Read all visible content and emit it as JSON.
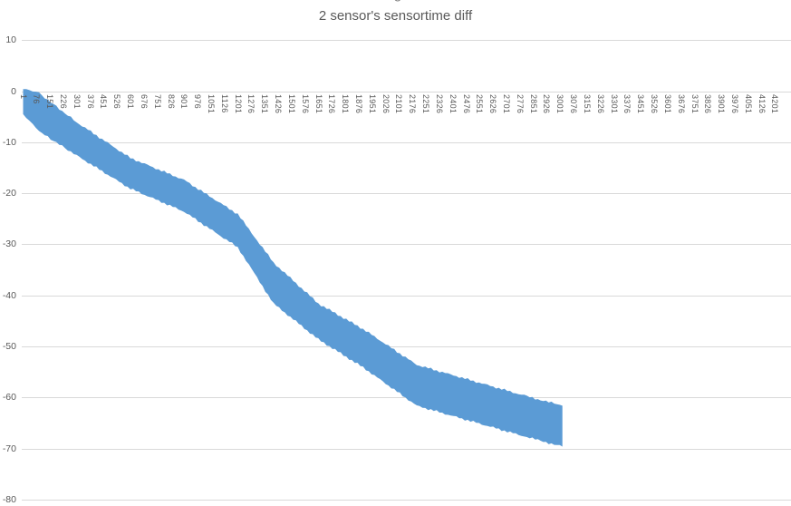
{
  "title": "2 sensor's sensortime diff",
  "cropped_text_above_title": "g",
  "colors": {
    "band": "#5b9bd5",
    "gridline": "#d9d9d9",
    "axis_label": "#595959",
    "title": "#595959",
    "background": "#ffffff"
  },
  "chart_data": {
    "type": "area",
    "title": "2 sensor's sensortime diff",
    "series_style": "dense-oscillating-line-rendered-as-thick-band",
    "legend": "none",
    "grid": "horizontal",
    "xlabel": "",
    "ylabel": "",
    "ylim": [
      -80,
      10
    ],
    "y_ticks": [
      10,
      0,
      -10,
      -20,
      -30,
      -40,
      -50,
      -60,
      -70,
      -80
    ],
    "x_tick_step": 75,
    "x_tick_labels": [
      "1",
      "76",
      "151",
      "226",
      "301",
      "376",
      "451",
      "526",
      "601",
      "676",
      "751",
      "826",
      "901",
      "976",
      "1051",
      "1126",
      "1201",
      "1276",
      "1351",
      "1426",
      "1501",
      "1576",
      "1651",
      "1726",
      "1801",
      "1876",
      "1951",
      "2026",
      "2101",
      "2176",
      "2251",
      "2326",
      "2401",
      "2476",
      "2551",
      "2626",
      "2701",
      "2776",
      "2851",
      "2926",
      "3001",
      "3076",
      "3151",
      "3226",
      "3301",
      "3376",
      "3451",
      "3526",
      "3601",
      "3676",
      "3751",
      "3826",
      "3901",
      "3976",
      "4051",
      "4126",
      "4201"
    ],
    "data_end_category": 3013,
    "band_points": [
      {
        "x": 1,
        "top": 0.5,
        "bottom": -4.5
      },
      {
        "x": 90,
        "top": -0.3,
        "bottom": -7.8
      },
      {
        "x": 300,
        "top": -6.0,
        "bottom": -12.5
      },
      {
        "x": 600,
        "top": -13.0,
        "bottom": -19.0
      },
      {
        "x": 900,
        "top": -17.3,
        "bottom": -23.5
      },
      {
        "x": 1200,
        "top": -24.0,
        "bottom": -30.5
      },
      {
        "x": 1400,
        "top": -33.5,
        "bottom": -41.5
      },
      {
        "x": 1650,
        "top": -41.5,
        "bottom": -48.5
      },
      {
        "x": 1900,
        "top": -46.5,
        "bottom": -54.0
      },
      {
        "x": 2200,
        "top": -53.5,
        "bottom": -61.5
      },
      {
        "x": 2500,
        "top": -56.5,
        "bottom": -64.5
      },
      {
        "x": 2800,
        "top": -59.5,
        "bottom": -67.5
      },
      {
        "x": 3013,
        "top": -61.5,
        "bottom": -69.5
      }
    ]
  }
}
